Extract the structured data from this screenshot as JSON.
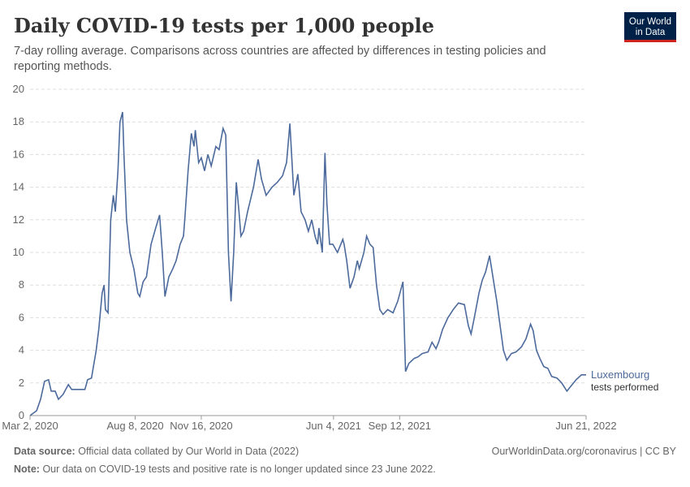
{
  "chart_data": {
    "type": "line",
    "title": "Daily COVID-19 tests per 1,000 people",
    "subtitle": [
      "7-day rolling average. Comparisons across countries are affected by differences in testing policies and",
      "reporting methods."
    ],
    "logo": [
      "Our World",
      "in Data"
    ],
    "source_label": "Data source:",
    "source": "Official data collated by Our World in Data (2022)",
    "credit": "OurWorldinData.org/coronavirus | CC BY",
    "note_label": "Note:",
    "note": "Our data on COVID-19 tests and positive rate is no longer updated since 23 June 2022.",
    "x": [
      "2020-03-02",
      "2020-03-12",
      "2020-03-18",
      "2020-03-24",
      "2020-03-30",
      "2020-04-03",
      "2020-04-09",
      "2020-04-14",
      "2020-04-21",
      "2020-04-29",
      "2020-05-04",
      "2020-05-12",
      "2020-05-24",
      "2020-05-28",
      "2020-06-03",
      "2020-06-10",
      "2020-06-14",
      "2020-06-19",
      "2020-06-22",
      "2020-06-24",
      "2020-06-28",
      "2020-07-02",
      "2020-07-06",
      "2020-07-09",
      "2020-07-13",
      "2020-07-16",
      "2020-07-20",
      "2020-07-22",
      "2020-07-26",
      "2020-07-31",
      "2020-08-06",
      "2020-08-12",
      "2020-08-15",
      "2020-08-20",
      "2020-08-25",
      "2020-09-01",
      "2020-09-08",
      "2020-09-14",
      "2020-09-18",
      "2020-09-22",
      "2020-09-28",
      "2020-10-04",
      "2020-10-09",
      "2020-10-15",
      "2020-10-20",
      "2020-10-22",
      "2020-10-27",
      "2020-11-01",
      "2020-11-05",
      "2020-11-07",
      "2020-11-12",
      "2020-11-16",
      "2020-11-21",
      "2020-11-26",
      "2020-12-01",
      "2020-12-08",
      "2020-12-13",
      "2020-12-19",
      "2020-12-23",
      "2020-12-27",
      "2020-12-31",
      "2021-01-04",
      "2021-01-08",
      "2021-01-12",
      "2021-01-15",
      "2021-01-19",
      "2021-01-25",
      "2021-02-03",
      "2021-02-10",
      "2021-02-15",
      "2021-02-22",
      "2021-03-03",
      "2021-03-11",
      "2021-03-19",
      "2021-03-25",
      "2021-03-30",
      "2021-04-05",
      "2021-04-11",
      "2021-04-16",
      "2021-04-22",
      "2021-04-27",
      "2021-05-02",
      "2021-05-07",
      "2021-05-11",
      "2021-05-13",
      "2021-05-18",
      "2021-05-22",
      "2021-05-25",
      "2021-05-29",
      "2021-06-03",
      "2021-06-10",
      "2021-06-18",
      "2021-06-20",
      "2021-06-24",
      "2021-06-29",
      "2021-07-05",
      "2021-07-10",
      "2021-07-13",
      "2021-07-20",
      "2021-07-24",
      "2021-07-29",
      "2021-08-03",
      "2021-08-08",
      "2021-08-13",
      "2021-08-18",
      "2021-08-25",
      "2021-09-02",
      "2021-09-09",
      "2021-09-17",
      "2021-09-21",
      "2021-09-26",
      "2021-10-04",
      "2021-10-10",
      "2021-10-16",
      "2021-10-25",
      "2021-10-31",
      "2021-11-06",
      "2021-11-10",
      "2021-11-16",
      "2021-11-24",
      "2021-12-02",
      "2021-12-10",
      "2021-12-19",
      "2021-12-25",
      "2021-12-29",
      "2022-01-03",
      "2022-01-10",
      "2022-01-15",
      "2022-01-20",
      "2022-01-26",
      "2022-01-31",
      "2022-02-06",
      "2022-02-11",
      "2022-02-16",
      "2022-02-21",
      "2022-02-28",
      "2022-03-07",
      "2022-03-15",
      "2022-03-22",
      "2022-03-29",
      "2022-04-02",
      "2022-04-07",
      "2022-04-12",
      "2022-04-18",
      "2022-04-24",
      "2022-04-30",
      "2022-05-08",
      "2022-05-15",
      "2022-05-23",
      "2022-05-29",
      "2022-06-06",
      "2022-06-14",
      "2022-06-21"
    ],
    "series": [
      {
        "name": "Luxembourg",
        "label": "tests performed",
        "color": "#4c6a9c",
        "values": [
          0,
          0.3,
          1.0,
          2.1,
          2.2,
          1.5,
          1.5,
          1.0,
          1.3,
          1.9,
          1.6,
          1.6,
          1.6,
          2.2,
          2.3,
          4.0,
          5.3,
          7.5,
          8.0,
          6.5,
          6.3,
          12,
          13.5,
          12.5,
          15,
          18,
          18.6,
          16,
          12,
          10,
          9.0,
          7.5,
          7.3,
          8.2,
          8.5,
          10.5,
          11.5,
          12.3,
          10,
          7.3,
          8.5,
          9.0,
          9.5,
          10.5,
          11,
          12,
          15,
          17.3,
          16.5,
          17.5,
          15.5,
          15.8,
          15.0,
          16,
          15.3,
          16.5,
          16.3,
          17.6,
          17.2,
          10,
          7,
          10,
          14.3,
          12.5,
          11,
          11.3,
          12.5,
          14,
          15.7,
          14.5,
          13.5,
          14.0,
          14.3,
          14.7,
          15.5,
          17.9,
          13.5,
          14.8,
          12.5,
          12.0,
          11.3,
          12,
          11.0,
          10.5,
          11.5,
          10.0,
          16.1,
          13,
          10.5,
          10.5,
          10,
          10.8,
          10.5,
          9.5,
          7.8,
          8.5,
          9.5,
          9.0,
          10,
          11.0,
          10.5,
          10.3,
          8,
          6.5,
          6.2,
          6.5,
          6.3,
          7.0,
          8.2,
          2.7,
          3.2,
          3.5,
          3.6,
          3.8,
          3.9,
          4.5,
          4.1,
          4.5,
          5.3,
          6.0,
          6.5,
          6.9,
          6.8,
          5.5,
          5.0,
          6.0,
          7.5,
          8.3,
          8.8,
          9.8,
          8.5,
          7.0,
          5.5,
          4.0,
          3.4,
          3.8,
          3.9,
          4.2,
          4.7,
          5.6,
          5.2,
          4.0,
          3.5,
          3.0,
          2.9,
          2.4,
          2.3,
          2.0,
          1.5,
          1.8,
          2.2,
          2.5,
          2.5
        ]
      }
    ],
    "xlim": [
      "2020-03-02",
      "2022-06-21"
    ],
    "xticks": [
      {
        "value": "2020-03-02",
        "label": "Mar 2, 2020"
      },
      {
        "value": "2020-08-08",
        "label": "Aug 8, 2020"
      },
      {
        "value": "2020-11-16",
        "label": "Nov 16, 2020"
      },
      {
        "value": "2021-06-04",
        "label": "Jun 4, 2021"
      },
      {
        "value": "2021-09-12",
        "label": "Sep 12, 2021"
      },
      {
        "value": "2022-06-21",
        "label": "Jun 21, 2022"
      }
    ],
    "ylim": [
      0,
      20
    ],
    "yticks": [
      0,
      2,
      4,
      6,
      8,
      10,
      12,
      14,
      16,
      18,
      20
    ],
    "grid": true
  }
}
